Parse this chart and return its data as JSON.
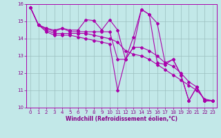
{
  "xlabel": "Windchill (Refroidissement éolien,°C)",
  "bg_color": "#c2e8e8",
  "line_color": "#aa00aa",
  "xlim": [
    -0.5,
    23.5
  ],
  "ylim": [
    10,
    16
  ],
  "yticks": [
    10,
    11,
    12,
    13,
    14,
    15,
    16
  ],
  "xticks": [
    0,
    1,
    2,
    3,
    4,
    5,
    6,
    7,
    8,
    9,
    10,
    11,
    12,
    13,
    14,
    15,
    16,
    17,
    18,
    19,
    20,
    21,
    22,
    23
  ],
  "series": [
    [
      15.8,
      14.8,
      14.6,
      14.5,
      14.6,
      14.5,
      14.5,
      15.1,
      15.05,
      14.5,
      15.1,
      14.5,
      12.8,
      13.5,
      15.7,
      15.4,
      14.9,
      12.6,
      12.8,
      11.9,
      10.4,
      11.2,
      10.4,
      10.4
    ],
    [
      15.8,
      14.8,
      14.6,
      14.4,
      14.6,
      14.4,
      14.4,
      14.4,
      14.4,
      14.4,
      14.4,
      12.8,
      12.8,
      13.5,
      13.5,
      13.3,
      13.0,
      12.6,
      12.4,
      12.0,
      11.5,
      11.2,
      10.4,
      10.4
    ],
    [
      15.8,
      14.8,
      14.5,
      14.3,
      14.3,
      14.3,
      14.3,
      14.3,
      14.2,
      14.1,
      14.0,
      13.8,
      13.3,
      13.1,
      13.0,
      12.8,
      12.5,
      12.2,
      11.9,
      11.6,
      11.3,
      11.0,
      10.5,
      10.4
    ],
    [
      15.8,
      14.8,
      14.4,
      14.2,
      14.2,
      14.2,
      14.1,
      14.0,
      13.9,
      13.8,
      13.7,
      11.0,
      12.8,
      14.1,
      15.7,
      15.4,
      12.6,
      12.5,
      12.8,
      11.9,
      10.4,
      11.2,
      10.4,
      10.4
    ]
  ],
  "marker": "D",
  "markersize": 2.0,
  "linewidth": 0.8,
  "grid_color": "#9bbfbf",
  "font_color": "#880088",
  "tick_fontsize": 5.0,
  "xlabel_fontsize": 5.5
}
